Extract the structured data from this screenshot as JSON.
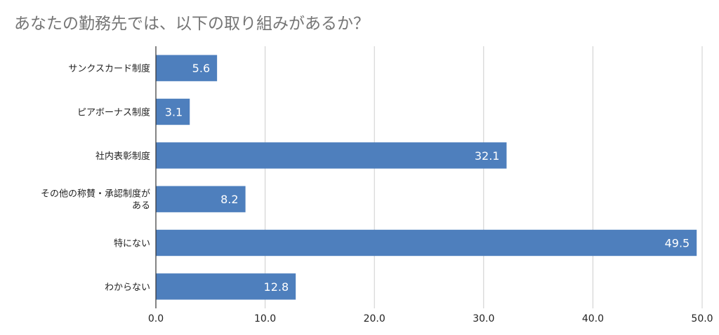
{
  "chart_data": {
    "type": "bar",
    "orientation": "horizontal",
    "title": "あなたの勤務先では、以下の取り組みがあるか？",
    "categories": [
      [
        "サンクスカード制度"
      ],
      [
        "ピアボーナス制度"
      ],
      [
        "社内表彰制度"
      ],
      [
        "その他の称賛・承認制度が",
        "ある"
      ],
      [
        "特にない"
      ],
      [
        "わからない"
      ]
    ],
    "values": [
      5.6,
      3.1,
      32.1,
      8.2,
      49.5,
      12.8
    ],
    "value_labels": [
      "5.6",
      "3.1",
      "32.1",
      "8.2",
      "49.5",
      "12.8"
    ],
    "xlim": [
      0,
      50
    ],
    "x_ticks": [
      "0.0",
      "10.0",
      "20.0",
      "30.0",
      "40.0",
      "50.0"
    ],
    "grid": true,
    "colors": {
      "bar": "#4e7fbd",
      "grid": "#cccccc",
      "axis": "#333333"
    }
  }
}
